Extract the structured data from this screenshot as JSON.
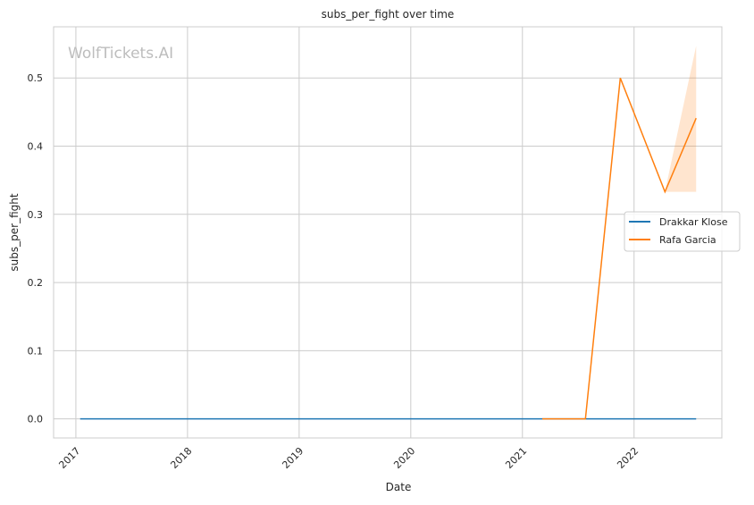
{
  "chart_data": {
    "type": "line",
    "title": "subs_per_fight over time",
    "xlabel": "Date",
    "ylabel": "subs_per_fight",
    "watermark": "WolfTickets.AI",
    "xlim": [
      "2016-10-20",
      "2022-10-15"
    ],
    "ylim": [
      -0.028,
      0.575
    ],
    "x_ticks": [
      "2017",
      "2018",
      "2019",
      "2020",
      "2021",
      "2022"
    ],
    "y_ticks": [
      "0.0",
      "0.1",
      "0.2",
      "0.3",
      "0.4",
      "0.5"
    ],
    "y_tick_values": [
      0,
      0.1,
      0.2,
      0.3,
      0.4,
      0.5
    ],
    "grid": true,
    "legend_position": "center-right",
    "series": [
      {
        "name": "Drakkar Klose",
        "color": "#1f77b4",
        "x": [
          "2017-01-15",
          "2022-07-23"
        ],
        "y": [
          0,
          0
        ]
      },
      {
        "name": "Rafa Garcia",
        "color": "#ff7f0e",
        "x": [
          "2021-03-07",
          "2021-07-26",
          "2021-11-17",
          "2022-04-12",
          "2022-07-23"
        ],
        "y": [
          0,
          0,
          0.5,
          0.333,
          0.441
        ],
        "ci": {
          "x": [
            "2022-04-12",
            "2022-07-23"
          ],
          "lower": [
            0.333,
            0.333
          ],
          "upper": [
            0.333,
            0.547
          ]
        }
      }
    ]
  }
}
